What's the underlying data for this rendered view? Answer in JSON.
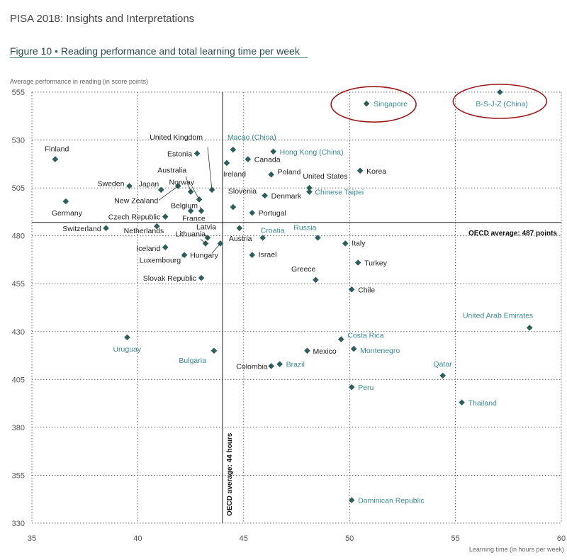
{
  "header": {
    "report_title": "PISA 2018: Insights and Interpretations",
    "figure_label": "Figure 10",
    "figure_bullet": "•",
    "figure_title": "Reading performance and total learning time per week"
  },
  "colors": {
    "marker": "#2f5f5a",
    "label_dark": "#222222",
    "label_teal": "#3a8a90",
    "oecd_line": "#222222",
    "grid": "#444444",
    "highlight_ring": "#9b1b1b"
  },
  "chart_data": {
    "type": "scatter",
    "xlabel": "Learning time (in hours per week)",
    "ylabel": "Average performance in reading (in score points)",
    "xlim": [
      35,
      60
    ],
    "ylim": [
      330,
      555
    ],
    "xticks": [
      35,
      40,
      45,
      50,
      55,
      60
    ],
    "yticks": [
      330,
      355,
      380,
      405,
      430,
      455,
      480,
      505,
      530,
      555
    ],
    "grid": "dotted",
    "reference_lines": [
      {
        "axis": "y",
        "value": 487,
        "label": "OECD average: 487 points"
      },
      {
        "axis": "x",
        "value": 44,
        "label": "OECD average: 44 hours"
      }
    ],
    "highlighted": [
      "Singapore",
      "B-S-J-Z (China)"
    ],
    "points": [
      {
        "name": "B-S-J-Z (China)",
        "x": 57.1,
        "y": 555,
        "style": "teal"
      },
      {
        "name": "Singapore",
        "x": 50.8,
        "y": 549,
        "style": "teal"
      },
      {
        "name": "Finland",
        "x": 36.1,
        "y": 520,
        "style": "dark"
      },
      {
        "name": "Macao (China)",
        "x": 44.5,
        "y": 525,
        "style": "teal"
      },
      {
        "name": "Hong Kong (China)",
        "x": 46.4,
        "y": 524,
        "style": "teal"
      },
      {
        "name": "United Kingdom",
        "x": 43.5,
        "y": 504,
        "style": "dark"
      },
      {
        "name": "Estonia",
        "x": 42.8,
        "y": 523,
        "style": "dark"
      },
      {
        "name": "Canada",
        "x": 45.2,
        "y": 520,
        "style": "dark"
      },
      {
        "name": "Ireland",
        "x": 44.2,
        "y": 518,
        "style": "dark"
      },
      {
        "name": "Korea",
        "x": 50.5,
        "y": 514,
        "style": "dark"
      },
      {
        "name": "Poland",
        "x": 46.3,
        "y": 512,
        "style": "dark"
      },
      {
        "name": "Norway",
        "x": 42.9,
        "y": 499,
        "style": "dark"
      },
      {
        "name": "Sweden",
        "x": 39.6,
        "y": 506,
        "style": "dark"
      },
      {
        "name": "Australia",
        "x": 42.5,
        "y": 503,
        "style": "dark"
      },
      {
        "name": "Japan",
        "x": 41.1,
        "y": 504,
        "style": "dark"
      },
      {
        "name": "United States",
        "x": 48.1,
        "y": 505,
        "style": "dark"
      },
      {
        "name": "Chinese Taipei",
        "x": 48.1,
        "y": 503,
        "style": "teal"
      },
      {
        "name": "New Zealand",
        "x": 41.9,
        "y": 506,
        "style": "dark"
      },
      {
        "name": "Denmark",
        "x": 46.0,
        "y": 501,
        "style": "dark"
      },
      {
        "name": "Slovenia",
        "x": 44.5,
        "y": 495,
        "style": "dark"
      },
      {
        "name": "Germany",
        "x": 36.6,
        "y": 498,
        "style": "dark"
      },
      {
        "name": "Belgium",
        "x": 43.0,
        "y": 493,
        "style": "dark"
      },
      {
        "name": "Portugal",
        "x": 45.4,
        "y": 492,
        "style": "dark"
      },
      {
        "name": "France",
        "x": 42.5,
        "y": 493,
        "style": "dark"
      },
      {
        "name": "Czech Republic",
        "x": 41.3,
        "y": 490,
        "style": "dark"
      },
      {
        "name": "Switzerland",
        "x": 38.5,
        "y": 484,
        "style": "dark"
      },
      {
        "name": "Netherlands",
        "x": 40.9,
        "y": 485,
        "style": "dark"
      },
      {
        "name": "Latvia",
        "x": 43.3,
        "y": 479,
        "style": "dark"
      },
      {
        "name": "Austria",
        "x": 44.8,
        "y": 484,
        "style": "dark"
      },
      {
        "name": "Croatia",
        "x": 45.9,
        "y": 479,
        "style": "teal"
      },
      {
        "name": "Russia",
        "x": 48.5,
        "y": 479,
        "style": "teal"
      },
      {
        "name": "Italy",
        "x": 49.8,
        "y": 476,
        "style": "dark"
      },
      {
        "name": "Lithuania",
        "x": 43.2,
        "y": 476,
        "style": "dark"
      },
      {
        "name": "Iceland",
        "x": 41.3,
        "y": 474,
        "style": "dark"
      },
      {
        "name": "Hungary",
        "x": 43.9,
        "y": 476,
        "style": "dark"
      },
      {
        "name": "Luxembourg",
        "x": 42.2,
        "y": 470,
        "style": "dark"
      },
      {
        "name": "Israel",
        "x": 45.4,
        "y": 470,
        "style": "dark"
      },
      {
        "name": "Turkey",
        "x": 50.4,
        "y": 466,
        "style": "dark"
      },
      {
        "name": "Slovak Republic",
        "x": 43.0,
        "y": 458,
        "style": "dark"
      },
      {
        "name": "Greece",
        "x": 48.4,
        "y": 457,
        "style": "dark"
      },
      {
        "name": "Chile",
        "x": 50.1,
        "y": 452,
        "style": "dark"
      },
      {
        "name": "United Arab Emirates",
        "x": 58.5,
        "y": 432,
        "style": "teal"
      },
      {
        "name": "Uruguay",
        "x": 39.5,
        "y": 427,
        "style": "teal"
      },
      {
        "name": "Costa Rica",
        "x": 49.6,
        "y": 426,
        "style": "teal"
      },
      {
        "name": "Mexico",
        "x": 48.0,
        "y": 420,
        "style": "dark"
      },
      {
        "name": "Montenegro",
        "x": 50.2,
        "y": 421,
        "style": "teal"
      },
      {
        "name": "Bulgaria",
        "x": 43.6,
        "y": 420,
        "style": "teal"
      },
      {
        "name": "Colombia",
        "x": 46.3,
        "y": 412,
        "style": "dark"
      },
      {
        "name": "Brazil",
        "x": 46.7,
        "y": 413,
        "style": "teal"
      },
      {
        "name": "Qatar",
        "x": 54.4,
        "y": 407,
        "style": "teal"
      },
      {
        "name": "Peru",
        "x": 50.1,
        "y": 401,
        "style": "teal"
      },
      {
        "name": "Thailand",
        "x": 55.3,
        "y": 393,
        "style": "teal"
      },
      {
        "name": "Dominican Republic",
        "x": 50.1,
        "y": 342,
        "style": "teal"
      }
    ]
  }
}
